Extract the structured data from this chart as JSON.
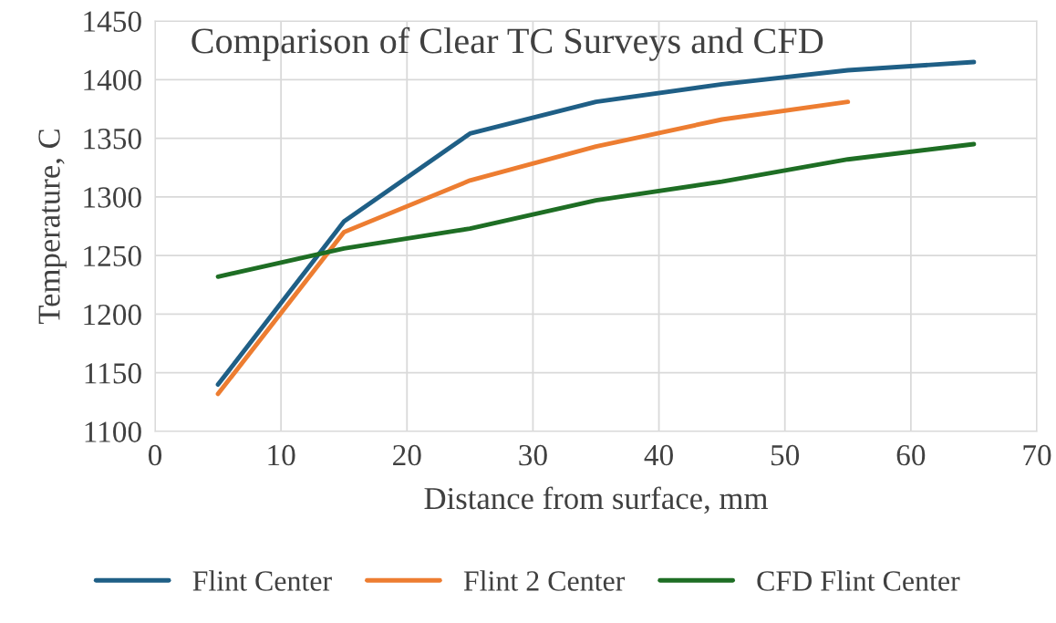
{
  "chart_data": {
    "type": "line",
    "title": "Comparison of Clear TC Surveys and CFD",
    "xlabel": "Distance from surface, mm",
    "ylabel": "Temperature, C",
    "x": [
      5,
      15,
      25,
      35,
      45,
      55,
      65
    ],
    "series": [
      {
        "name": "Flint Center",
        "color": "#1f5f86",
        "values": [
          1140,
          1279,
          1354,
          1381,
          1396,
          1408,
          1415
        ]
      },
      {
        "name": "Flint 2 Center",
        "color": "#ed7d31",
        "values": [
          1132,
          1270,
          1314,
          1343,
          1366,
          1381,
          null
        ]
      },
      {
        "name": "CFD Flint Center",
        "color": "#1e6e24",
        "values": [
          1232,
          1256,
          1273,
          1297,
          1313,
          1332,
          1345
        ]
      }
    ],
    "xlim": [
      0,
      70
    ],
    "xticks": [
      0,
      10,
      20,
      30,
      40,
      50,
      60,
      70
    ],
    "ylim": [
      1100,
      1450
    ],
    "yticks": [
      1100,
      1150,
      1200,
      1250,
      1300,
      1350,
      1400,
      1450
    ],
    "grid": true,
    "legend": "bottom",
    "marker": "none",
    "line_style": "solid"
  }
}
